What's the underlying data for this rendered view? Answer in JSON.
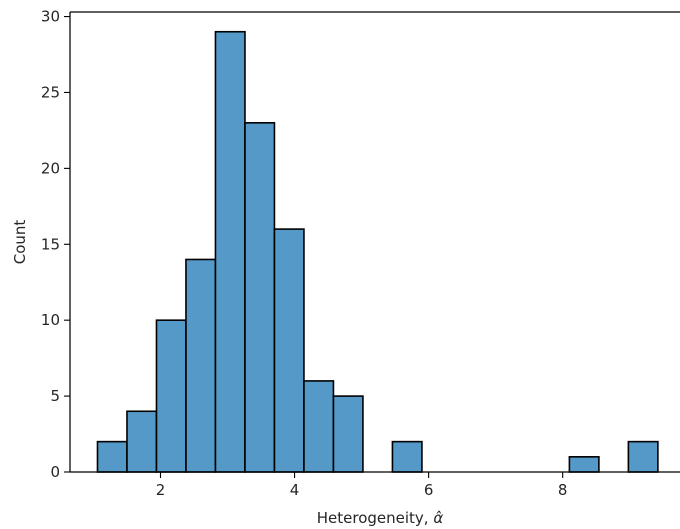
{
  "chart_data": {
    "type": "bar",
    "subtype": "histogram",
    "title": "",
    "xlabel": "Heterogeneity, ",
    "xlabel_symbol": "α̂",
    "ylabel": "Count",
    "xlim": [
      0.65,
      9.75
    ],
    "ylim": [
      0,
      30.3
    ],
    "xticks": [
      2,
      4,
      6,
      8
    ],
    "yticks": [
      0,
      5,
      10,
      15,
      20,
      25,
      30
    ],
    "grid": false,
    "bin_width": 0.44,
    "bins": [
      {
        "x0": 1.06,
        "x1": 1.5,
        "count": 2
      },
      {
        "x0": 1.5,
        "x1": 1.94,
        "count": 4
      },
      {
        "x0": 1.94,
        "x1": 2.38,
        "count": 10
      },
      {
        "x0": 2.38,
        "x1": 2.82,
        "count": 14
      },
      {
        "x0": 2.82,
        "x1": 3.26,
        "count": 29
      },
      {
        "x0": 3.26,
        "x1": 3.7,
        "count": 23
      },
      {
        "x0": 3.7,
        "x1": 4.14,
        "count": 16
      },
      {
        "x0": 4.14,
        "x1": 4.58,
        "count": 6
      },
      {
        "x0": 4.58,
        "x1": 5.02,
        "count": 5
      },
      {
        "x0": 5.02,
        "x1": 5.46,
        "count": 0
      },
      {
        "x0": 5.46,
        "x1": 5.9,
        "count": 2
      },
      {
        "x0": 5.9,
        "x1": 6.34,
        "count": 0
      },
      {
        "x0": 6.34,
        "x1": 6.78,
        "count": 0
      },
      {
        "x0": 6.78,
        "x1": 7.22,
        "count": 0
      },
      {
        "x0": 7.22,
        "x1": 7.66,
        "count": 0
      },
      {
        "x0": 7.66,
        "x1": 8.1,
        "count": 0
      },
      {
        "x0": 8.1,
        "x1": 8.54,
        "count": 1
      },
      {
        "x0": 8.54,
        "x1": 8.98,
        "count": 0
      },
      {
        "x0": 8.98,
        "x1": 9.42,
        "count": 2
      }
    ],
    "colors": {
      "bar_fill": "#5499c7",
      "bar_edge": "#000000",
      "axis": "#000000",
      "text": "#262626"
    }
  }
}
